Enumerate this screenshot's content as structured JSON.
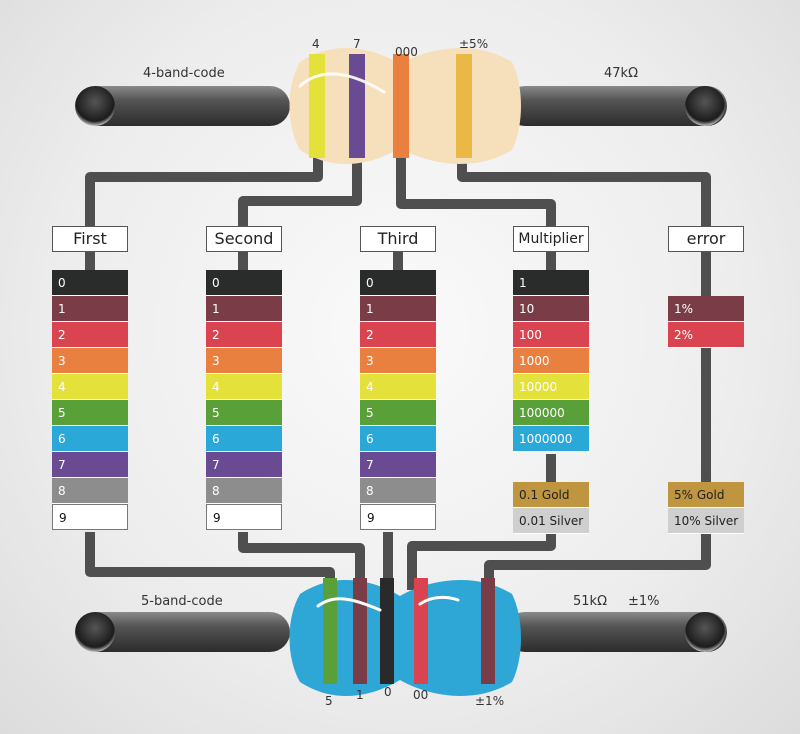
{
  "resistor4": {
    "title": "4-band-code",
    "value": "47kΩ",
    "band_labels": [
      "4",
      "7",
      "000",
      "±5%"
    ],
    "band_colors": [
      "#e4e23a",
      "#6a4a92",
      "#e9803f",
      "#e9b845"
    ]
  },
  "resistor5": {
    "title": "5-band-code",
    "value": "51kΩ",
    "tolerance": "±1%",
    "band_labels": [
      "5",
      "1",
      "0",
      "00",
      "±1%"
    ],
    "band_colors": [
      "#5aa039",
      "#7a3c47",
      "#2a2a2a",
      "#d94450",
      "#7a3c47"
    ]
  },
  "headers": [
    "First",
    "Second",
    "Third",
    "Multiplier",
    "error"
  ],
  "digit_rows": [
    {
      "label": "0",
      "color": "#2a2c2b"
    },
    {
      "label": "1",
      "color": "#7a3c47"
    },
    {
      "label": "2",
      "color": "#d94450"
    },
    {
      "label": "3",
      "color": "#e9803f"
    },
    {
      "label": "4",
      "color": "#e4e23a"
    },
    {
      "label": "5",
      "color": "#5aa039"
    },
    {
      "label": "6",
      "color": "#2aa8d8"
    },
    {
      "label": "7",
      "color": "#6a4a92"
    },
    {
      "label": "8",
      "color": "#8d8d8d"
    },
    {
      "label": "9",
      "color": "#ffffff"
    }
  ],
  "multiplier_rows": [
    {
      "label": "1",
      "color": "#2a2c2b"
    },
    {
      "label": "10",
      "color": "#7a3c47"
    },
    {
      "label": "100",
      "color": "#d94450"
    },
    {
      "label": "1000",
      "color": "#e9803f"
    },
    {
      "label": "10000",
      "color": "#e4e23a"
    },
    {
      "label": "100000",
      "color": "#5aa039"
    },
    {
      "label": "1000000",
      "color": "#2aa8d8"
    }
  ],
  "multiplier_extra": [
    "0.1 Gold",
    "0.01 Silver"
  ],
  "error_rows": [
    {
      "label": "1%",
      "color": "#7a3c47"
    },
    {
      "label": "2%",
      "color": "#d94450"
    }
  ],
  "error_extra": [
    "5% Gold",
    "10% Silver"
  ],
  "wire_color": "#4f4f4f"
}
